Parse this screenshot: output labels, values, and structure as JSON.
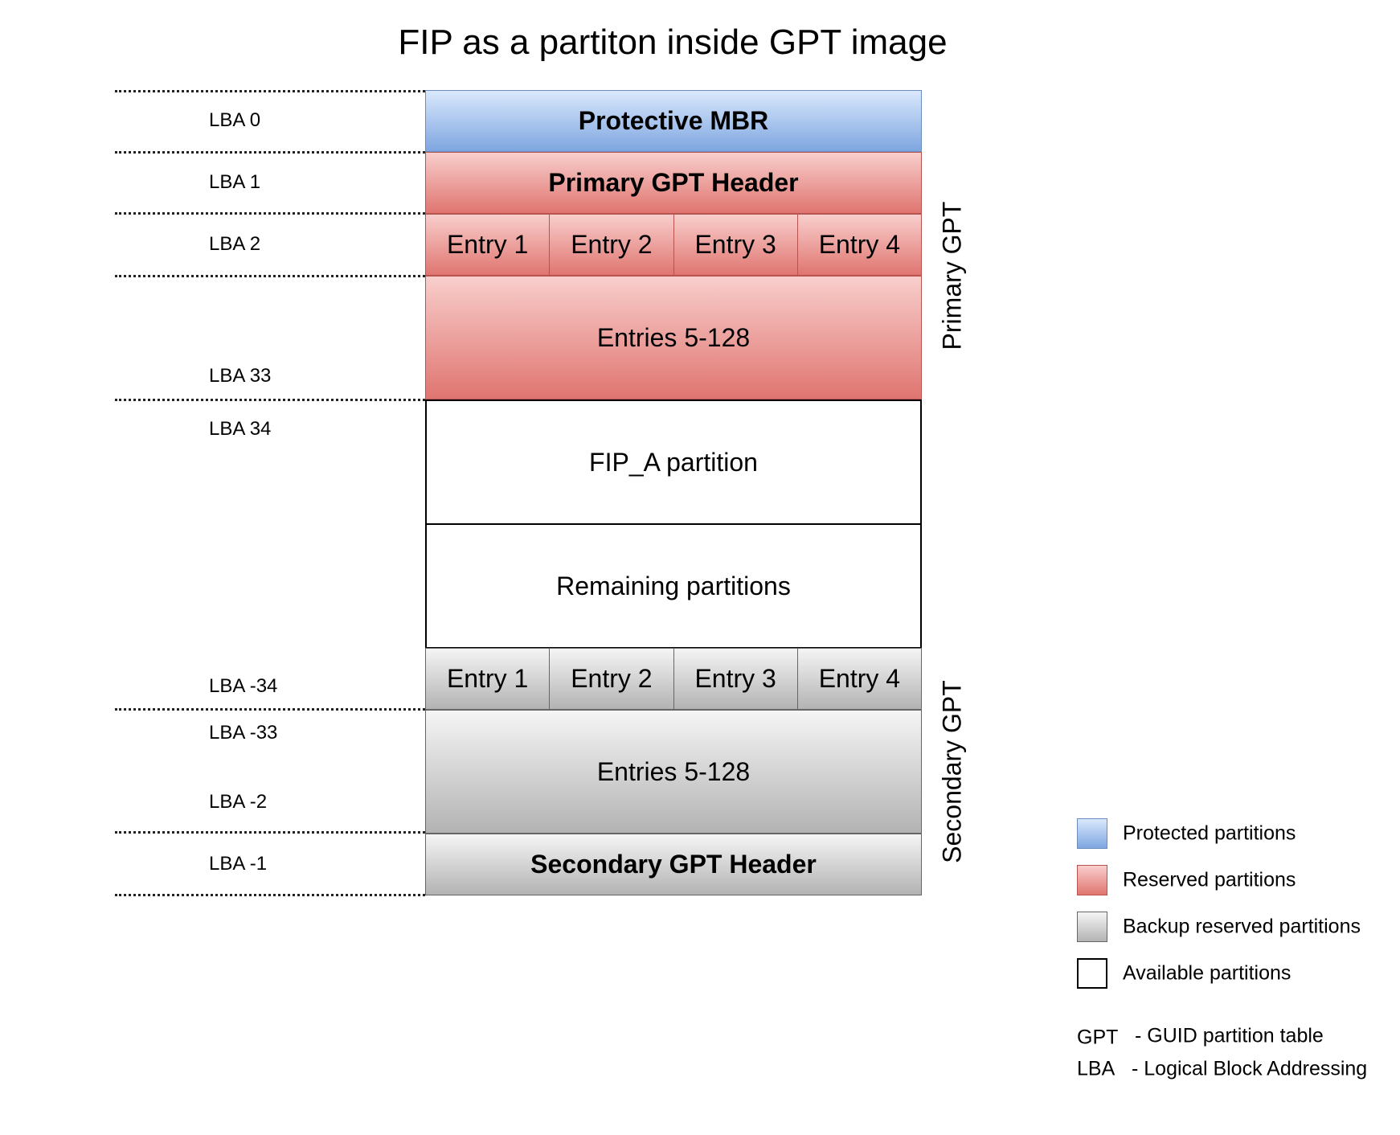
{
  "title": "FIP as a partiton inside GPT image",
  "lba_labels": [
    "LBA 0",
    "LBA 1",
    "LBA 2",
    "LBA 33",
    "LBA 34",
    "LBA -34",
    "LBA -33",
    "LBA -2",
    "LBA -1"
  ],
  "blocks": {
    "protective_mbr": "Protective MBR",
    "primary_header": "Primary GPT Header",
    "primary_entries": [
      "Entry 1",
      "Entry 2",
      "Entry 3",
      "Entry 4"
    ],
    "primary_entries_rest": "Entries 5-128",
    "fip_a": "FIP_A partition",
    "remaining": "Remaining partitions",
    "secondary_entries": [
      "Entry 1",
      "Entry 2",
      "Entry 3",
      "Entry 4"
    ],
    "secondary_entries_rest": "Entries 5-128",
    "secondary_header": "Secondary GPT Header"
  },
  "group_labels": {
    "primary": "Primary GPT",
    "secondary": "Secondary GPT"
  },
  "legend": [
    {
      "label": "Protected partitions",
      "color": "#7ea6e0"
    },
    {
      "label": "Reserved partitions",
      "color": "#ea6b66"
    },
    {
      "label": "Backup reserved partitions",
      "color": "#b3b3b3"
    },
    {
      "label": "Available partitions",
      "color": "#ffffff"
    }
  ],
  "abbreviations": [
    {
      "abbr": "GPT",
      "meaning": "- GUID partition table"
    },
    {
      "abbr": "LBA",
      "meaning": "- Logical Block Addressing"
    }
  ]
}
